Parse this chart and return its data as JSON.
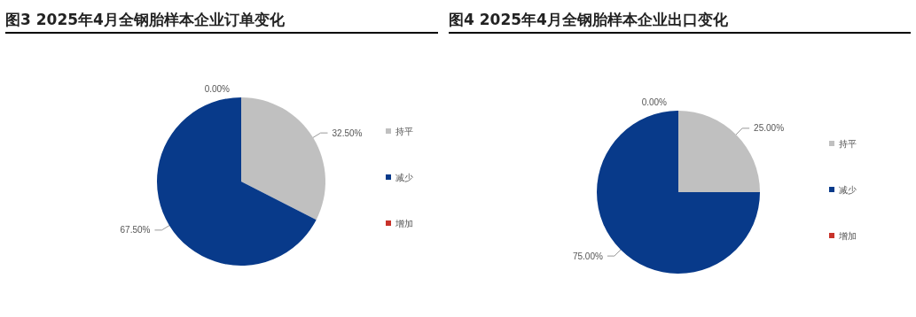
{
  "chart_data": [
    {
      "type": "pie",
      "title": "图3 2025年4月全钢胎样本企业订单变化",
      "categories": [
        "持平",
        "减少",
        "增加"
      ],
      "values": [
        32.5,
        67.5,
        0
      ],
      "colors": [
        "#c0c0c0",
        "#083a8a",
        "#c8322a"
      ],
      "value_labels": [
        "32.50%",
        "67.50%",
        "0.00%"
      ],
      "legend": "right"
    },
    {
      "type": "pie",
      "title": "图4 2025年4月全钢胎样本企业出口变化",
      "categories": [
        "持平",
        "减少",
        "增加"
      ],
      "values": [
        25,
        75,
        0
      ],
      "colors": [
        "#c0c0c0",
        "#083a8a",
        "#c8322a"
      ],
      "value_labels": [
        "25.00%",
        "75.00%",
        "0.00%"
      ],
      "legend": "right"
    }
  ]
}
